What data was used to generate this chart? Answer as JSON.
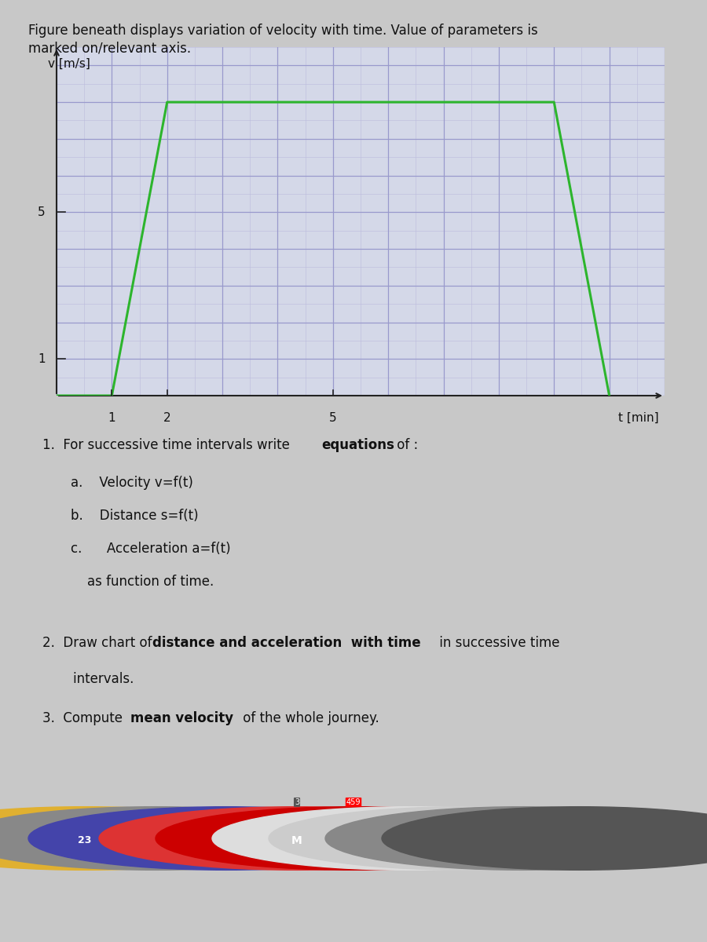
{
  "title_line1": "Figure beneath displays variation of velocity with time. Value of parameters is",
  "title_line2": "marked on/relevant axis.",
  "ylabel": "v [m/s]",
  "xlabel": "t [min]",
  "velocity_points_t": [
    0,
    1,
    2,
    9,
    10
  ],
  "velocity_points_v": [
    0,
    0,
    8,
    8,
    0
  ],
  "line_color": "#2db52d",
  "line_width": 2.2,
  "grid_major_color": "#9999cc",
  "grid_minor_color": "#bbbbdd",
  "bg_color": "#d4d8e8",
  "axis_color": "#222222",
  "text_color": "#111111",
  "xmax": 11,
  "ymax": 9.5,
  "v_max": 8,
  "t_rise_start": 1,
  "t_rise_end": 2,
  "t_flat_end": 9,
  "t_fall_end": 10,
  "ytick_vals": [
    1,
    5
  ],
  "ytick_labels": [
    "1",
    "5"
  ],
  "xtick_vals": [
    1,
    2,
    5
  ],
  "xtick_labels": [
    "1",
    "2",
    "5"
  ],
  "q1_pre": "1.  For successive time intervals write ",
  "q1_bold": "equations",
  "q1_post": " of :",
  "q1a": "a.    Velocity v=f(t)",
  "q1b": "b.    Distance s=f(t)",
  "q1c": "c.      Acceleration a=f(t)",
  "q1d": "    as function of time.",
  "q2_pre": "2.  Draw chart of ",
  "q2_bold": "distance and acceleration  with time",
  "q2_post": " in successive time",
  "q2_cont": "    intervals.",
  "q3_pre": "3.  Compute ",
  "q3_bold": "mean velocity",
  "q3_post": " of the whole journey.",
  "taskbar_bg": "#1a1a1a",
  "wood_bg": "#5c3317",
  "page_bg": "#c8c8c8"
}
